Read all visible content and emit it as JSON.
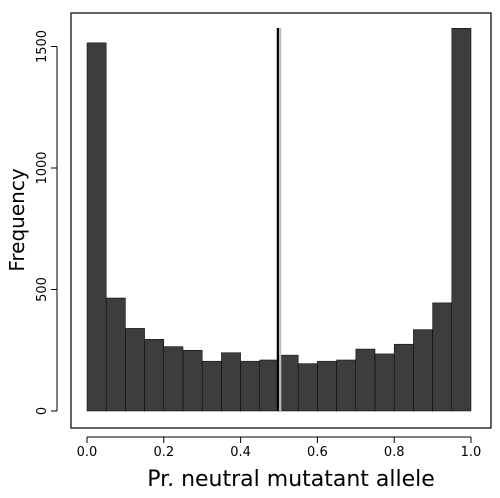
{
  "chart_data": {
    "type": "bar",
    "xlabel": "Pr. neutral mutatant allele",
    "ylabel": "Frequency",
    "xlim": [
      0.0,
      1.0
    ],
    "ylim": [
      0,
      1600
    ],
    "x_ticks": [
      "0.0",
      "0.2",
      "0.4",
      "0.6",
      "0.8",
      "1.0"
    ],
    "y_ticks": [
      "0",
      "500",
      "1000",
      "1500"
    ],
    "bin_edges": [
      0.0,
      0.05,
      0.1,
      0.15,
      0.2,
      0.25,
      0.3,
      0.35,
      0.4,
      0.45,
      0.5,
      0.55,
      0.6,
      0.65,
      0.7,
      0.75,
      0.8,
      0.85,
      0.9,
      0.95,
      1.0
    ],
    "values": [
      1515,
      465,
      340,
      295,
      265,
      250,
      205,
      240,
      205,
      210,
      230,
      195,
      205,
      210,
      255,
      235,
      275,
      335,
      445,
      1575
    ],
    "bar_color": "#3d3d3d",
    "reference_lines": [
      {
        "x": 0.497,
        "color": "#000000"
      },
      {
        "x": 0.503,
        "color": "#bdbdbd"
      }
    ],
    "grid": false
  }
}
